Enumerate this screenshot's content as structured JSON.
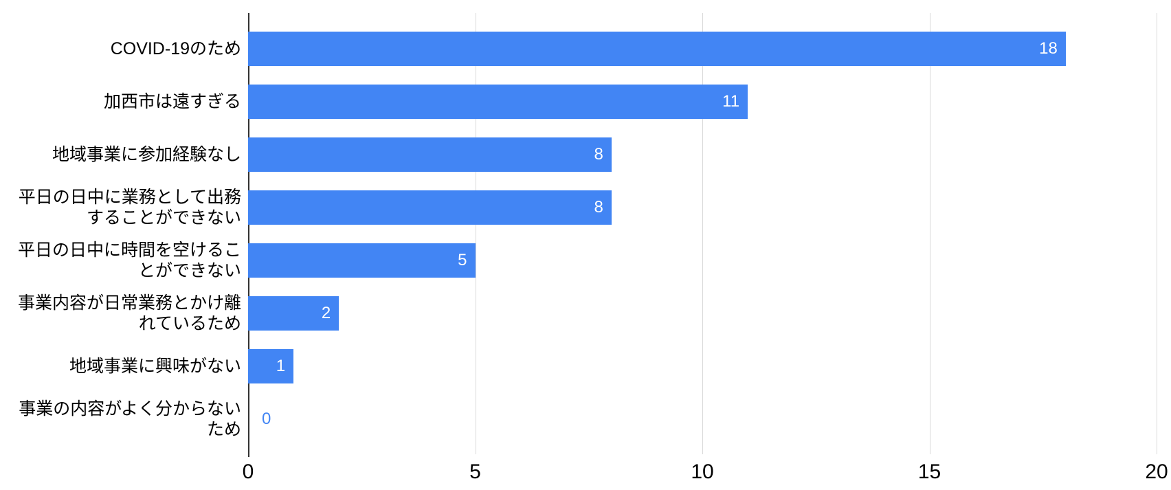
{
  "chart_data": {
    "type": "bar",
    "orientation": "horizontal",
    "title": "",
    "xlabel": "",
    "ylabel": "",
    "categories": [
      "COVID-19のため",
      "加西市は遠すぎる",
      "地域事業に参加経験なし",
      "平日の日中に業務として出務\nすることができない",
      "平日の日中に時間を空けるこ\nとができない",
      "事業内容が日常業務とかけ離\nれているため",
      "地域事業に興味がない",
      "事業の内容がよく分からない\nため"
    ],
    "values": [
      18,
      11,
      8,
      8,
      5,
      2,
      1,
      0
    ],
    "x_ticks": [
      "0",
      "5",
      "10",
      "15",
      "20"
    ],
    "xlim": [
      0,
      20
    ],
    "grid": true,
    "legend": "none",
    "colors": {
      "bar": "#4285f4",
      "value_label_inside": "#ffffff",
      "value_label_zero": "#4285f4",
      "gridline": "#d9d9d9",
      "axis_line": "#333333",
      "text": "#000000",
      "background": "#ffffff"
    }
  }
}
